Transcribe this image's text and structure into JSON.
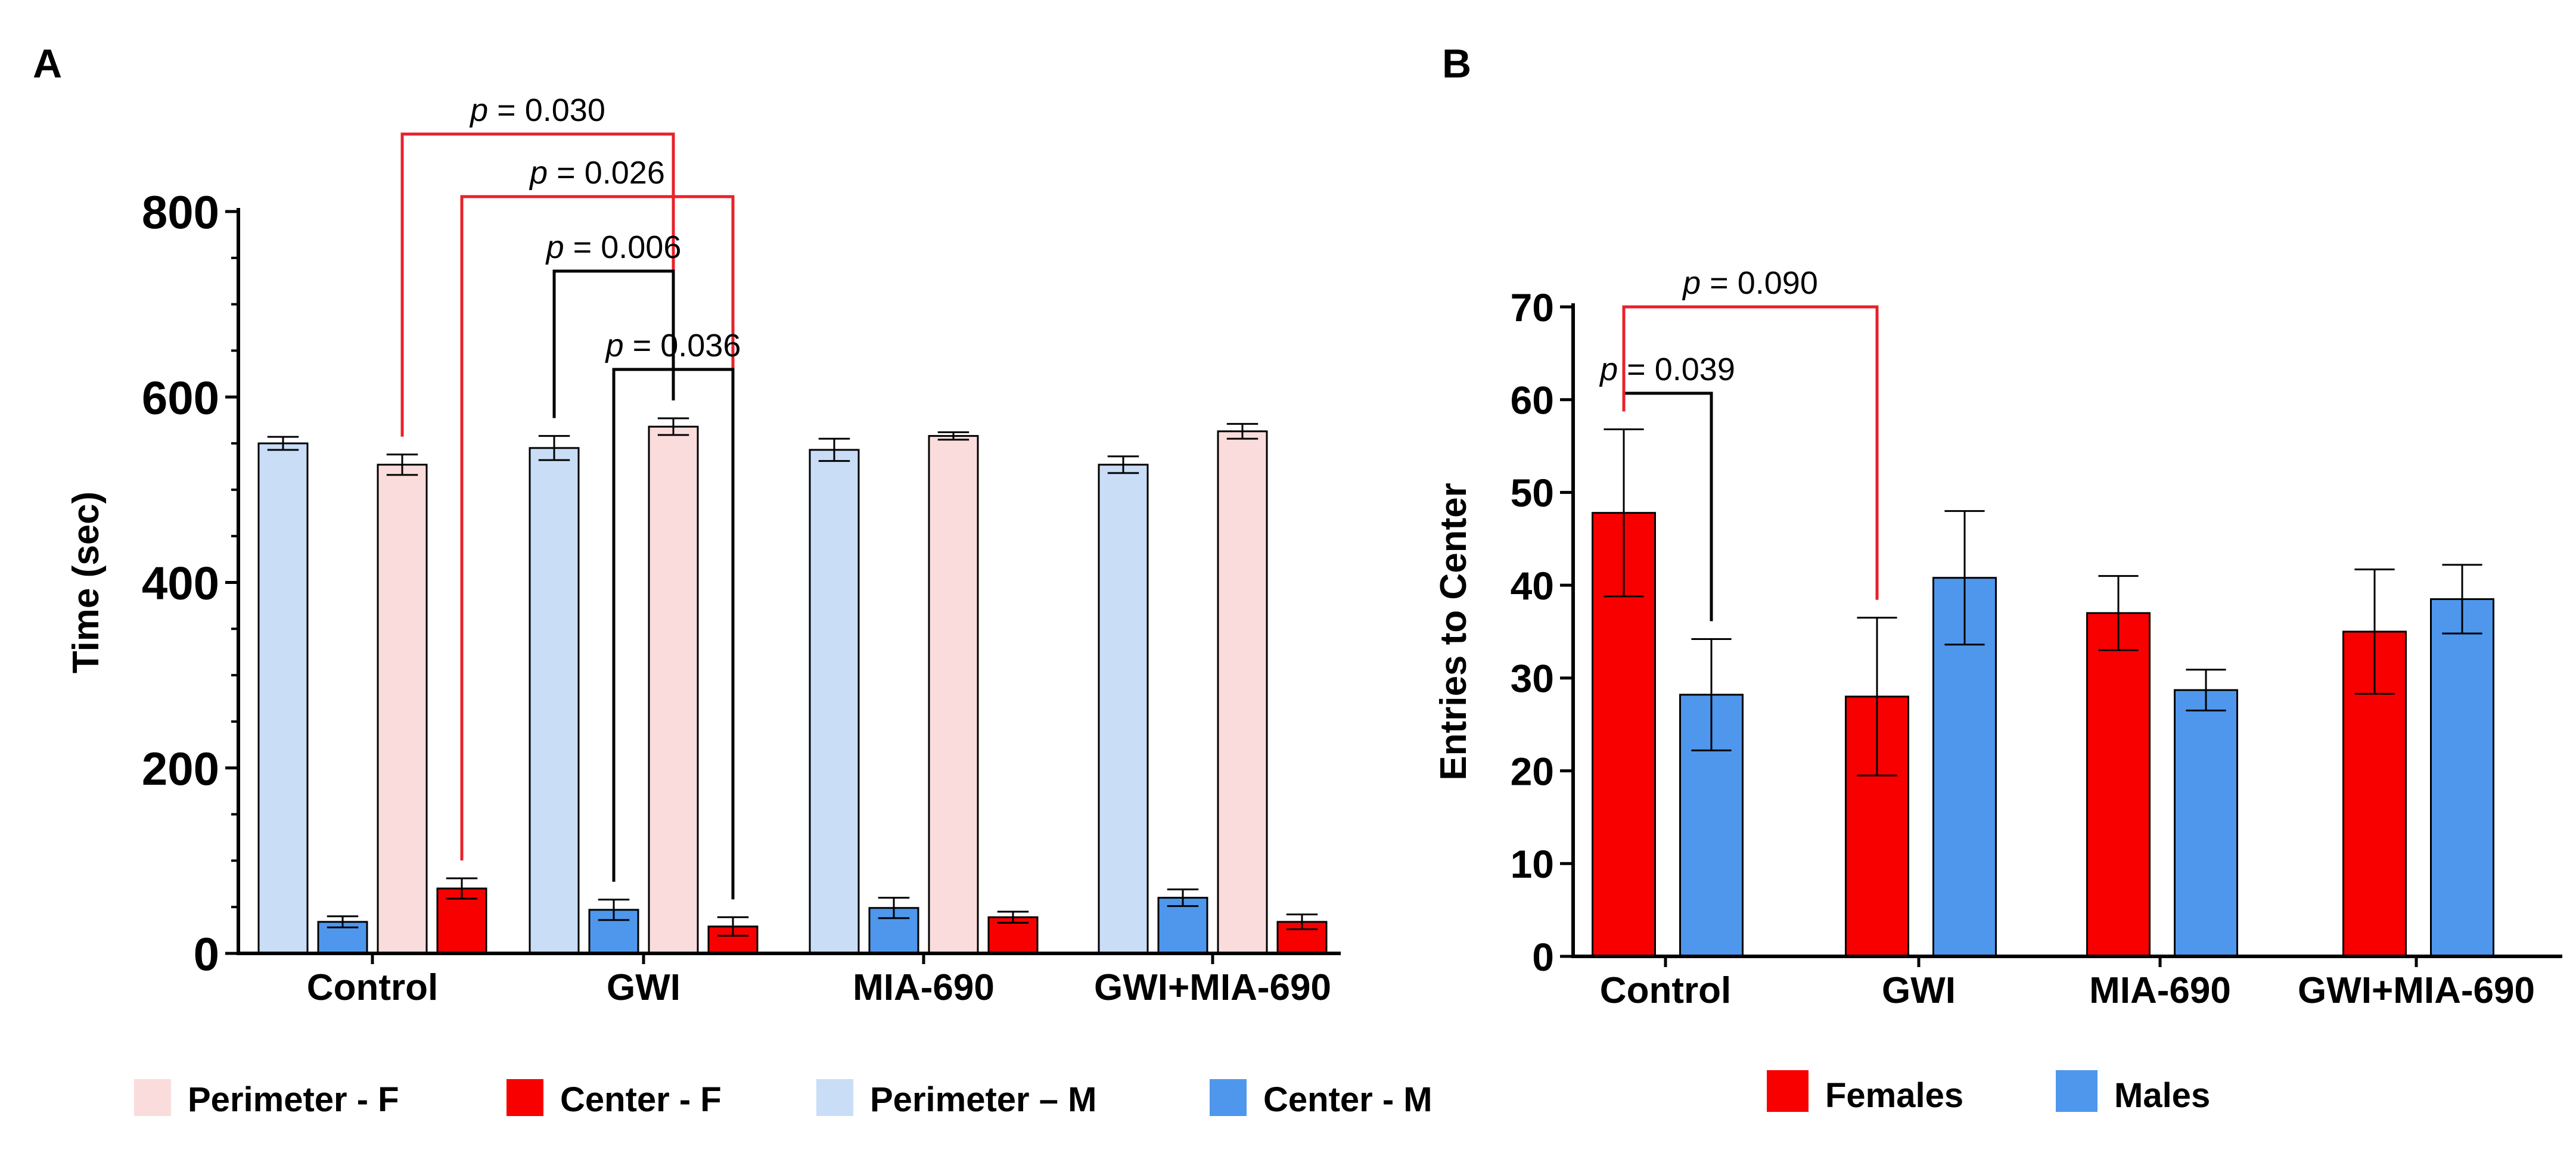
{
  "colors": {
    "perimeter_f": "#fbdcdc",
    "center_f": "#f90000",
    "perimeter_m": "#c9ddf7",
    "center_m": "#4f97ec",
    "females": "#f90000",
    "males": "#4f97ec",
    "sig_red": "#e8212a",
    "sig_black": "#000000"
  },
  "chart_data": [
    {
      "panel": "A",
      "type": "bar",
      "title": "",
      "xlabel": "",
      "ylabel": "Time (sec)",
      "ylim": [
        0,
        800
      ],
      "yticks": [
        0,
        200,
        400,
        600,
        800
      ],
      "yticks_labels": [
        "0",
        "200",
        "400",
        "600",
        "800"
      ],
      "categories": [
        "Control",
        "GWI",
        "MIA-690",
        "GWI+MIA-690"
      ],
      "series": [
        {
          "name": "Perimeter – M",
          "color_key": "perimeter_m",
          "values": [
            550,
            545,
            543,
            527
          ],
          "errors": [
            7,
            13,
            12,
            9
          ]
        },
        {
          "name": "Center - M",
          "color_key": "center_m",
          "values": [
            34,
            47,
            49,
            60
          ],
          "errors": [
            6,
            11,
            11,
            9
          ]
        },
        {
          "name": "Perimeter - F",
          "color_key": "perimeter_f",
          "values": [
            527,
            568,
            558,
            563
          ],
          "errors": [
            11,
            9,
            4,
            8
          ]
        },
        {
          "name": "Center - F",
          "color_key": "center_f",
          "values": [
            70,
            29,
            39,
            34
          ],
          "errors": [
            11,
            10,
            6,
            8
          ]
        }
      ],
      "legend": [
        {
          "label": "Perimeter - F",
          "color_key": "perimeter_f"
        },
        {
          "label": "Center - F",
          "color_key": "center_f"
        },
        {
          "label": "Perimeter – M",
          "color_key": "perimeter_m"
        },
        {
          "label": "Center - M",
          "color_key": "center_m"
        }
      ],
      "annotations": [
        {
          "from": [
            0,
            2
          ],
          "to": [
            1,
            2
          ],
          "p": "0.030",
          "color_key": "sig_red"
        },
        {
          "from": [
            0,
            3
          ],
          "to": [
            1,
            3
          ],
          "p": "0.026",
          "color_key": "sig_red"
        },
        {
          "from": [
            1,
            0
          ],
          "to": [
            1,
            2
          ],
          "p": "0.006",
          "color_key": "sig_black"
        },
        {
          "from": [
            1,
            1
          ],
          "to": [
            1,
            3
          ],
          "p": "0.036",
          "color_key": "sig_black"
        }
      ],
      "p_prefix": "p"
    },
    {
      "panel": "B",
      "type": "bar",
      "title": "",
      "xlabel": "",
      "ylabel": "Entries to Center",
      "ylim": [
        0,
        70
      ],
      "yticks": [
        0,
        10,
        20,
        30,
        40,
        50,
        60,
        70
      ],
      "yticks_labels": [
        "0",
        "10",
        "20",
        "30",
        "40",
        "50",
        "60",
        "70"
      ],
      "categories": [
        "Control",
        "GWI",
        "MIA-690",
        "GWI+MIA-690"
      ],
      "series": [
        {
          "name": "Females",
          "color_key": "females",
          "values": [
            47.8,
            28,
            37,
            35
          ],
          "errors": [
            9,
            8.5,
            4,
            6.7
          ]
        },
        {
          "name": "Males",
          "color_key": "males",
          "values": [
            28.2,
            40.8,
            28.7,
            38.5
          ],
          "errors": [
            6,
            7.2,
            2.2,
            3.7
          ]
        }
      ],
      "legend": [
        {
          "label": "Females",
          "color_key": "females"
        },
        {
          "label": "Males",
          "color_key": "males"
        }
      ],
      "annotations": [
        {
          "from": [
            0,
            0
          ],
          "to": [
            0,
            1
          ],
          "p": "0.039",
          "color_key": "sig_black"
        },
        {
          "from": [
            0,
            0
          ],
          "to": [
            1,
            0
          ],
          "p": "0.090",
          "color_key": "sig_red"
        }
      ],
      "p_prefix": "p"
    }
  ]
}
